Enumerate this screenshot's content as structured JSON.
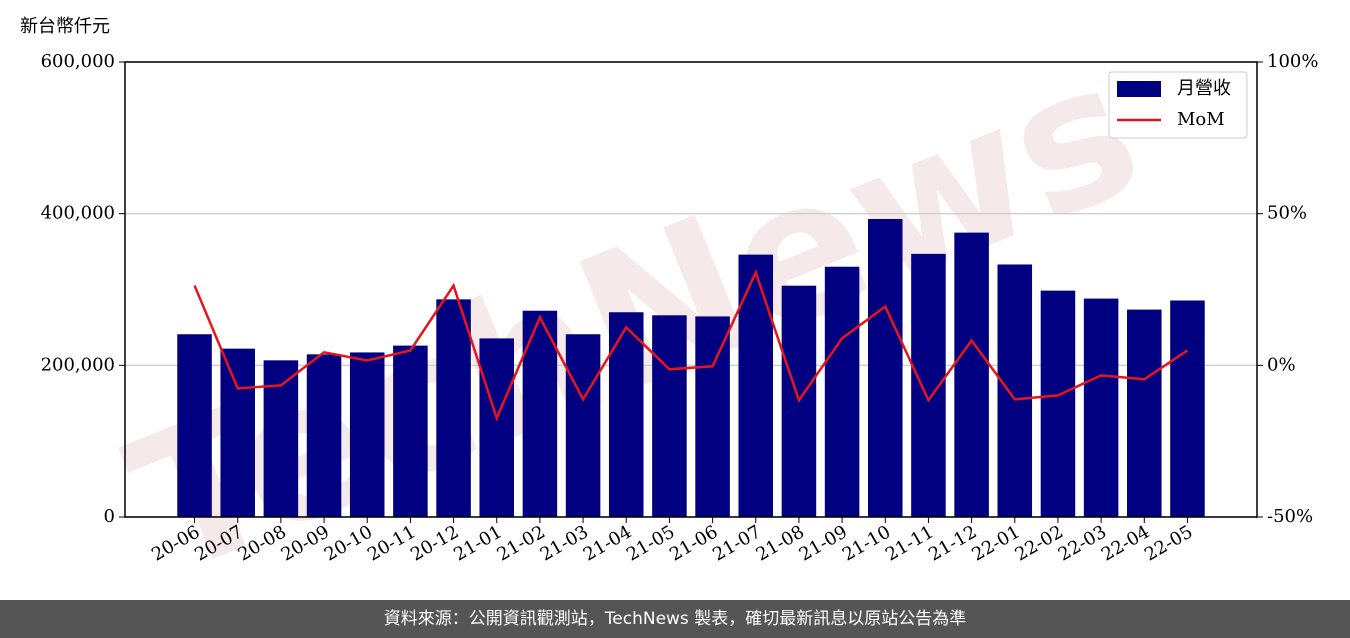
{
  "chart_data": {
    "type": "bar",
    "y_axis_label": "新台幣仟元",
    "watermark": "TechNews",
    "footer": "資料來源：公開資訊觀測站，TechNews 製表，確切最新訊息以原站公告為準",
    "categories": [
      "20-06",
      "20-07",
      "20-08",
      "20-09",
      "20-10",
      "20-11",
      "20-12",
      "21-01",
      "21-02",
      "21-03",
      "21-04",
      "21-05",
      "21-06",
      "21-07",
      "21-08",
      "21-09",
      "21-10",
      "21-11",
      "21-12",
      "22-01",
      "22-02",
      "22-03",
      "22-04",
      "22-05"
    ],
    "series": [
      {
        "name": "月營收",
        "type": "bar",
        "color": "#000080",
        "values": [
          241000,
          222000,
          206600,
          214500,
          217000,
          226000,
          287000,
          235500,
          272000,
          241000,
          270000,
          266000,
          264500,
          346000,
          305000,
          330000,
          393000,
          347000,
          375000,
          333000,
          298500,
          288000,
          273500,
          285500
        ]
      },
      {
        "name": "MoM",
        "type": "line",
        "axis": "y2",
        "color": "#e8141b",
        "values": [
          26.3,
          -7.6,
          -6.6,
          4.3,
          1.6,
          4.9,
          26.3,
          -17.4,
          15.8,
          -11.2,
          12.5,
          -1.3,
          -0.3,
          30.6,
          -11.5,
          8.9,
          19.4,
          -11.5,
          8.2,
          -11.2,
          -9.9,
          -3.3,
          -4.6,
          4.9
        ]
      }
    ],
    "ylim": [
      0,
      600000
    ],
    "yticks": [
      0,
      {
        "value": 200000,
        "label": "200,000"
      },
      {
        "value": 400000,
        "label": "400,000"
      },
      {
        "value": 600000,
        "label": "600,000"
      }
    ],
    "y2lim": [
      -50,
      100
    ],
    "y2ticks": [
      {
        "value": -50,
        "label": "-50%"
      },
      {
        "value": 0,
        "label": "0%"
      },
      {
        "value": 50,
        "label": "50%"
      },
      {
        "value": 100,
        "label": "100%"
      }
    ],
    "grid": true,
    "legend": "upper right"
  }
}
